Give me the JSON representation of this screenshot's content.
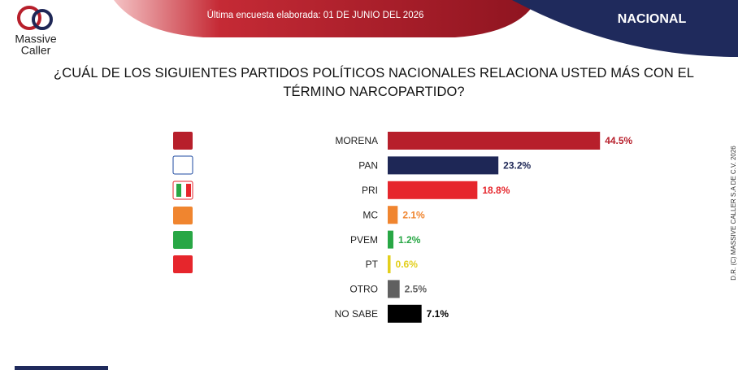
{
  "header": {
    "survey_date": "Última encuesta elaborada: 01 DE JUNIO DEL 2026",
    "region": "NACIONAL"
  },
  "logo": {
    "line1": "Massive",
    "line2": "Caller"
  },
  "footer": {
    "copyright": "D.R. (C) MASSIVE CALLER S.A DE C.V. 2026"
  },
  "chart_data": {
    "type": "bar",
    "orientation": "horizontal",
    "title": "¿CUÁL DE LOS SIGUIENTES PARTIDOS POLÍTICOS NACIONALES RELACIONA USTED MÁS CON EL TÉRMINO NARCOPARTIDO?",
    "categories": [
      "MORENA",
      "PAN",
      "PRI",
      "MC",
      "PVEM",
      "PT",
      "OTRO",
      "NO SABE"
    ],
    "values": [
      44.5,
      23.2,
      18.8,
      2.1,
      1.2,
      0.6,
      2.5,
      7.1
    ],
    "value_labels": [
      "44.5%",
      "23.2%",
      "18.8%",
      "2.1%",
      "1.2%",
      "0.6%",
      "2.5%",
      "7.1%"
    ],
    "colors": [
      "#b71f2b",
      "#1e2756",
      "#e6262c",
      "#f0852f",
      "#28a745",
      "#e3cf1c",
      "#606060",
      "#000000"
    ]
  }
}
